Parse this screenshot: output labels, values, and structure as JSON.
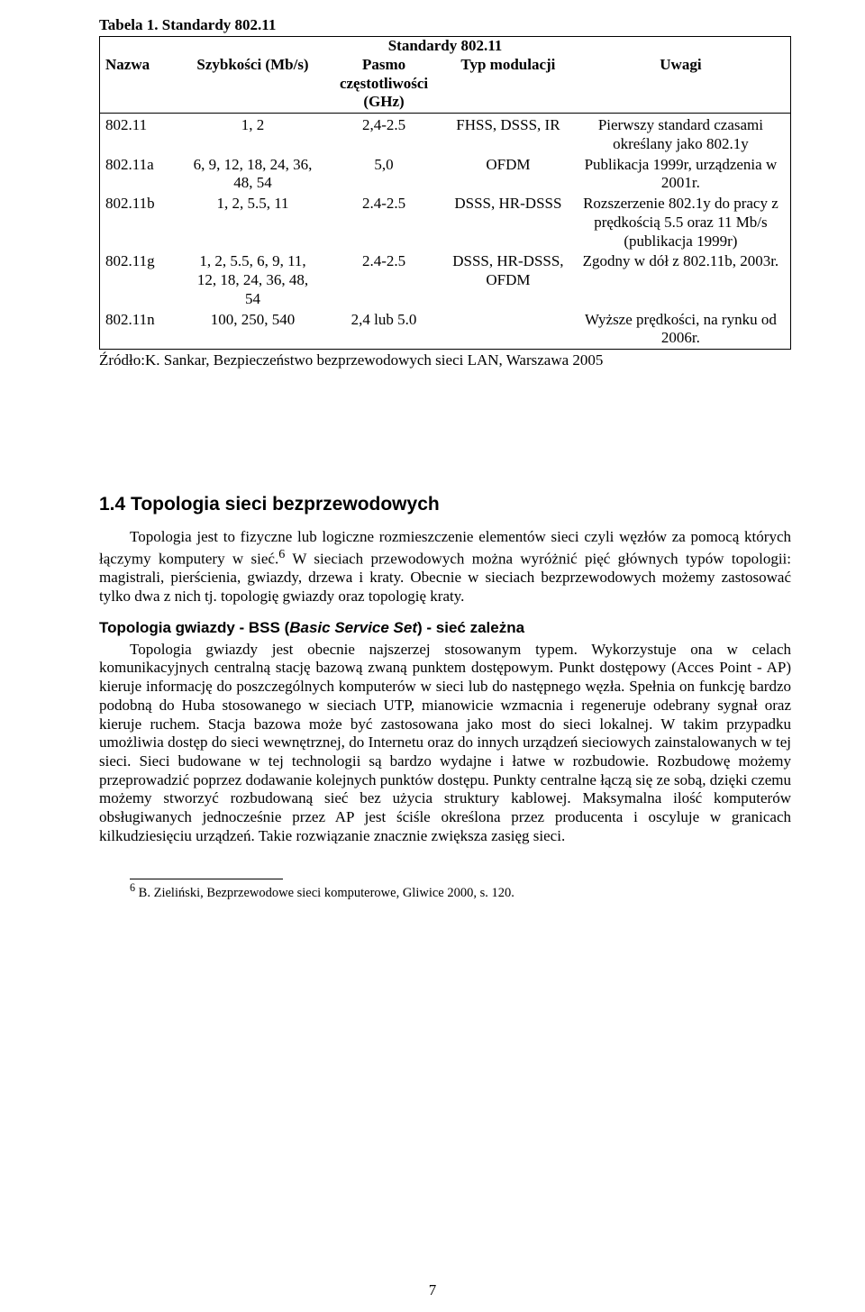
{
  "table": {
    "caption": "Tabela 1. Standardy 802.11",
    "title": "Standardy 802.11",
    "headers": {
      "c0": "Nazwa",
      "c1": "Szybkości (Mb/s)",
      "c2": "Pasmo częstotliwości (GHz)",
      "c3": "Typ modulacji",
      "c4": "Uwagi"
    },
    "rows": [
      {
        "c0": "802.11",
        "c1": "1, 2",
        "c2": "2,4-2.5",
        "c3": "FHSS, DSSS, IR",
        "c4": "Pierwszy standard czasami określany jako 802.1y"
      },
      {
        "c0": "802.11a",
        "c1": "6, 9, 12, 18, 24, 36, 48, 54",
        "c2": "5,0",
        "c3": "OFDM",
        "c4": "Publikacja 1999r, urządzenia w 2001r."
      },
      {
        "c0": "802.11b",
        "c1": "1, 2, 5.5, 11",
        "c2": "2.4-2.5",
        "c3": "DSSS, HR-DSSS",
        "c4": "Rozszerzenie 802.1y do pracy z prędkością 5.5 oraz 11 Mb/s (publikacja 1999r)"
      },
      {
        "c0": "802.11g",
        "c1": "1, 2, 5.5, 6, 9, 11, 12, 18, 24, 36, 48, 54",
        "c2": "2.4-2.5",
        "c3": "DSSS, HR-DSSS, OFDM",
        "c4": "Zgodny w dół z 802.11b, 2003r."
      },
      {
        "c0": "802.11n",
        "c1": "100, 250, 540",
        "c2": "2,4 lub 5.0",
        "c3": "",
        "c4": "Wyższe prędkości, na rynku od 2006r."
      }
    ]
  },
  "source": "Źródło:K. Sankar, Bezpieczeństwo bezprzewodowych sieci LAN, Warszawa 2005",
  "section": {
    "number": "1.4",
    "title": "Topologia sieci bezprzewodowych"
  },
  "para1": "Topologia jest to fizyczne lub logiczne rozmieszczenie elementów sieci czyli węzłów za pomocą których łączymy komputery w sieć.6 W sieciach przewodowych można wyróżnić pięć głównych typów topologii: magistrali, pierścienia, gwiazdy, drzewa i kraty. Obecnie w sieciach bezprzewodowych możemy zastosować tylko dwa z nich tj. topologię gwiazdy oraz topologię kraty.",
  "sub_heading": {
    "a": "Topologia gwiazdy - BSS (",
    "b": "Basic Service Set",
    "c": ") - sieć zależna"
  },
  "para2": "Topologia gwiazdy jest obecnie najszerzej stosowanym typem. Wykorzystuje ona w celach komunikacyjnych centralną stację bazową zwaną punktem dostępowym. Punkt dostępowy (Acces Point - AP) kieruje informację do poszczególnych komputerów w sieci lub do następnego węzła. Spełnia on funkcję bardzo podobną do Huba stosowanego w sieciach UTP, mianowicie wzmacnia i regeneruje odebrany sygnał oraz kieruje ruchem. Stacja bazowa może być zastosowana jako most do sieci lokalnej. W takim przypadku umożliwia dostęp do sieci wewnętrznej, do Internetu oraz do innych urządzeń sieciowych zainstalowanych w tej sieci. Sieci budowane w tej technologii są bardzo wydajne i łatwe w rozbudowie. Rozbudowę możemy przeprowadzić poprzez dodawanie kolejnych punktów dostępu. Punkty centralne łączą się ze sobą, dzięki czemu możemy stworzyć rozbudowaną sieć bez użycia struktury kablowej. Maksymalna ilość komputerów obsługiwanych jednocześnie przez AP jest ściśle określona przez producenta i oscyluje w granicach kilkudziesięciu urządzeń. Takie rozwiązanie znacznie zwiększa zasięg sieci.",
  "footnote": {
    "marker": "6",
    "text": " B. Zieliński, Bezprzewodowe sieci komputerowe,  Gliwice 2000, s. 120."
  },
  "page_number": "7",
  "col_widths": [
    "12%",
    "20%",
    "18%",
    "18%",
    "32%"
  ]
}
